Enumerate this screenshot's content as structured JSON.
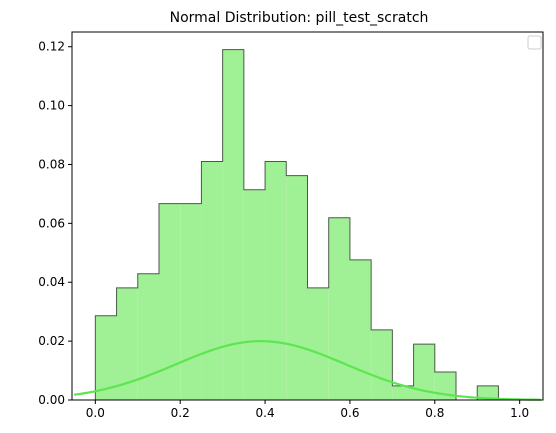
{
  "chart_data": {
    "type": "histogram",
    "title": "Normal Distribution: pill_test_scratch",
    "xlabel": "",
    "ylabel": "",
    "xlim": [
      -0.055,
      1.055
    ],
    "ylim": [
      0,
      0.125
    ],
    "bin_edges": [
      0.0,
      0.05,
      0.1,
      0.15,
      0.2,
      0.25,
      0.3,
      0.35,
      0.4,
      0.45,
      0.5,
      0.55,
      0.6,
      0.65,
      0.7,
      0.75,
      0.8,
      0.85,
      0.9,
      0.95,
      1.0
    ],
    "values": [
      0.0286,
      0.0381,
      0.0429,
      0.0667,
      0.0667,
      0.081,
      0.119,
      0.0714,
      0.081,
      0.0762,
      0.0381,
      0.0619,
      0.0476,
      0.0238,
      0.0048,
      0.019,
      0.0095,
      0.0,
      0.0048,
      0.0
    ],
    "curve": {
      "mean": 0.39,
      "std": 0.2,
      "amplitude": 0.02,
      "x_range": [
        -0.05,
        1.05
      ]
    },
    "xticks": [
      "0.0",
      "0.2",
      "0.4",
      "0.6",
      "0.8",
      "1.0"
    ],
    "yticks": [
      "0.00",
      "0.02",
      "0.04",
      "0.06",
      "0.08",
      "0.10",
      "0.12"
    ],
    "legend_placement": "upper-right",
    "grid": false,
    "colors": {
      "fill": "#a0f095",
      "edge": "#4a5a48",
      "curve": "#5ce650",
      "axes": "#000000"
    }
  }
}
